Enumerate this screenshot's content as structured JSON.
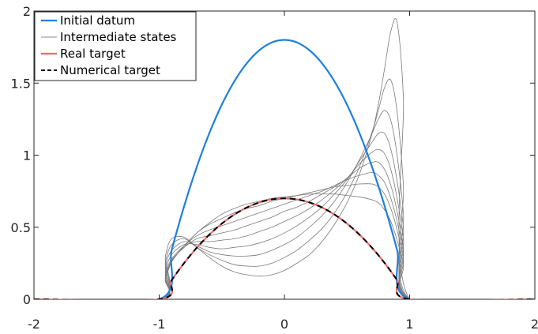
{
  "chart_data": {
    "type": "line",
    "xlim": [
      -2,
      2
    ],
    "ylim": [
      0,
      2
    ],
    "xticks": [
      "-2",
      "-1",
      "0",
      "1",
      "2"
    ],
    "yticks": [
      "0",
      "0.5",
      "1",
      "1.5",
      "2"
    ],
    "grid": false,
    "legend_position": "top-left",
    "legend": [
      {
        "label": "Initial datum",
        "color": "#1f7fe0",
        "style": "solid"
      },
      {
        "label": "Intermediate states",
        "color": "#a0a0a0",
        "style": "solid"
      },
      {
        "label": "Real target",
        "color": "#ef6a6a",
        "style": "solid"
      },
      {
        "label": "Numerical target",
        "color": "#000000",
        "style": "dashed"
      }
    ],
    "series": [
      {
        "name": "Initial datum",
        "x": [
          -2,
          -1,
          -0.9,
          -0.8,
          -0.7,
          -0.6,
          -0.5,
          -0.4,
          -0.3,
          -0.2,
          -0.1,
          0,
          0.1,
          0.2,
          0.3,
          0.4,
          0.5,
          0.6,
          0.7,
          0.8,
          0.9,
          1,
          2
        ],
        "y": [
          0,
          0,
          0.342,
          0.648,
          0.918,
          1.152,
          1.35,
          1.512,
          1.638,
          1.728,
          1.782,
          1.8,
          1.782,
          1.728,
          1.638,
          1.512,
          1.35,
          1.152,
          0.918,
          0.648,
          0.342,
          0,
          0
        ]
      },
      {
        "name": "Real target",
        "x": [
          -2,
          -1,
          -0.9,
          -0.8,
          -0.7,
          -0.6,
          -0.5,
          -0.4,
          -0.3,
          -0.2,
          -0.1,
          0,
          0.1,
          0.2,
          0.3,
          0.4,
          0.5,
          0.6,
          0.7,
          0.8,
          0.9,
          1,
          2
        ],
        "y": [
          0,
          0,
          0.133,
          0.252,
          0.357,
          0.448,
          0.525,
          0.588,
          0.637,
          0.672,
          0.693,
          0.7,
          0.693,
          0.672,
          0.637,
          0.588,
          0.525,
          0.448,
          0.357,
          0.252,
          0.133,
          0,
          0
        ]
      },
      {
        "name": "Numerical target",
        "x": [
          -2,
          -1,
          -0.9,
          -0.8,
          -0.7,
          -0.6,
          -0.5,
          -0.4,
          -0.3,
          -0.2,
          -0.1,
          0,
          0.1,
          0.2,
          0.3,
          0.4,
          0.5,
          0.6,
          0.7,
          0.8,
          0.9,
          1,
          2
        ],
        "y": [
          0,
          0,
          0.133,
          0.252,
          0.357,
          0.448,
          0.525,
          0.588,
          0.637,
          0.672,
          0.693,
          0.7,
          0.693,
          0.672,
          0.637,
          0.588,
          0.525,
          0.448,
          0.357,
          0.252,
          0.133,
          0,
          0
        ]
      }
    ],
    "intermediate": {
      "name": "Intermediate states",
      "x": [
        -2,
        -1,
        -0.95,
        -0.9,
        -0.8,
        -0.7,
        -0.6,
        -0.5,
        -0.4,
        -0.3,
        -0.2,
        -0.1,
        0,
        0.1,
        0.2,
        0.3,
        0.4,
        0.5,
        0.6,
        0.7,
        0.75,
        0.8,
        0.85,
        0.9,
        0.95,
        1,
        2
      ],
      "curves": [
        [
          0,
          0,
          0.3,
          0.42,
          0.43,
          0.36,
          0.29,
          0.23,
          0.19,
          0.17,
          0.16,
          0.17,
          0.2,
          0.25,
          0.31,
          0.4,
          0.52,
          0.67,
          0.87,
          1.15,
          1.35,
          1.6,
          1.86,
          1.92,
          1.4,
          0,
          0
        ],
        [
          0,
          0,
          0.26,
          0.38,
          0.42,
          0.36,
          0.31,
          0.27,
          0.24,
          0.23,
          0.23,
          0.25,
          0.29,
          0.34,
          0.41,
          0.49,
          0.6,
          0.74,
          0.92,
          1.16,
          1.31,
          1.47,
          1.52,
          1.3,
          0.8,
          0,
          0
        ],
        [
          0,
          0,
          0.23,
          0.34,
          0.4,
          0.37,
          0.33,
          0.31,
          0.3,
          0.3,
          0.31,
          0.34,
          0.38,
          0.43,
          0.5,
          0.58,
          0.68,
          0.81,
          0.97,
          1.15,
          1.25,
          1.31,
          1.24,
          1.0,
          0.6,
          0,
          0
        ],
        [
          0,
          0,
          0.2,
          0.31,
          0.38,
          0.38,
          0.36,
          0.35,
          0.36,
          0.37,
          0.39,
          0.42,
          0.46,
          0.51,
          0.57,
          0.64,
          0.73,
          0.83,
          0.96,
          1.09,
          1.15,
          1.15,
          1.04,
          0.82,
          0.5,
          0,
          0
        ],
        [
          0,
          0,
          0.18,
          0.28,
          0.37,
          0.4,
          0.4,
          0.41,
          0.42,
          0.44,
          0.47,
          0.5,
          0.54,
          0.58,
          0.63,
          0.69,
          0.76,
          0.84,
          0.94,
          1.02,
          1.04,
          1.01,
          0.9,
          0.7,
          0.42,
          0,
          0
        ],
        [
          0,
          0,
          0.16,
          0.27,
          0.36,
          0.42,
          0.44,
          0.46,
          0.48,
          0.51,
          0.54,
          0.57,
          0.61,
          0.64,
          0.68,
          0.73,
          0.78,
          0.84,
          0.91,
          0.95,
          0.95,
          0.9,
          0.79,
          0.61,
          0.36,
          0,
          0
        ],
        [
          0,
          0,
          0.15,
          0.26,
          0.37,
          0.44,
          0.48,
          0.51,
          0.54,
          0.57,
          0.6,
          0.63,
          0.66,
          0.69,
          0.72,
          0.75,
          0.79,
          0.83,
          0.86,
          0.88,
          0.86,
          0.81,
          0.7,
          0.54,
          0.32,
          0,
          0
        ],
        [
          0,
          0,
          0.14,
          0.26,
          0.37,
          0.46,
          0.52,
          0.56,
          0.6,
          0.63,
          0.65,
          0.68,
          0.7,
          0.72,
          0.74,
          0.76,
          0.78,
          0.79,
          0.8,
          0.8,
          0.78,
          0.73,
          0.63,
          0.48,
          0.28,
          0,
          0
        ],
        [
          0,
          0,
          0.14,
          0.26,
          0.37,
          0.46,
          0.53,
          0.59,
          0.63,
          0.66,
          0.68,
          0.7,
          0.71,
          0.72,
          0.73,
          0.73,
          0.73,
          0.72,
          0.71,
          0.69,
          0.67,
          0.62,
          0.54,
          0.41,
          0.24,
          0,
          0
        ]
      ]
    }
  }
}
